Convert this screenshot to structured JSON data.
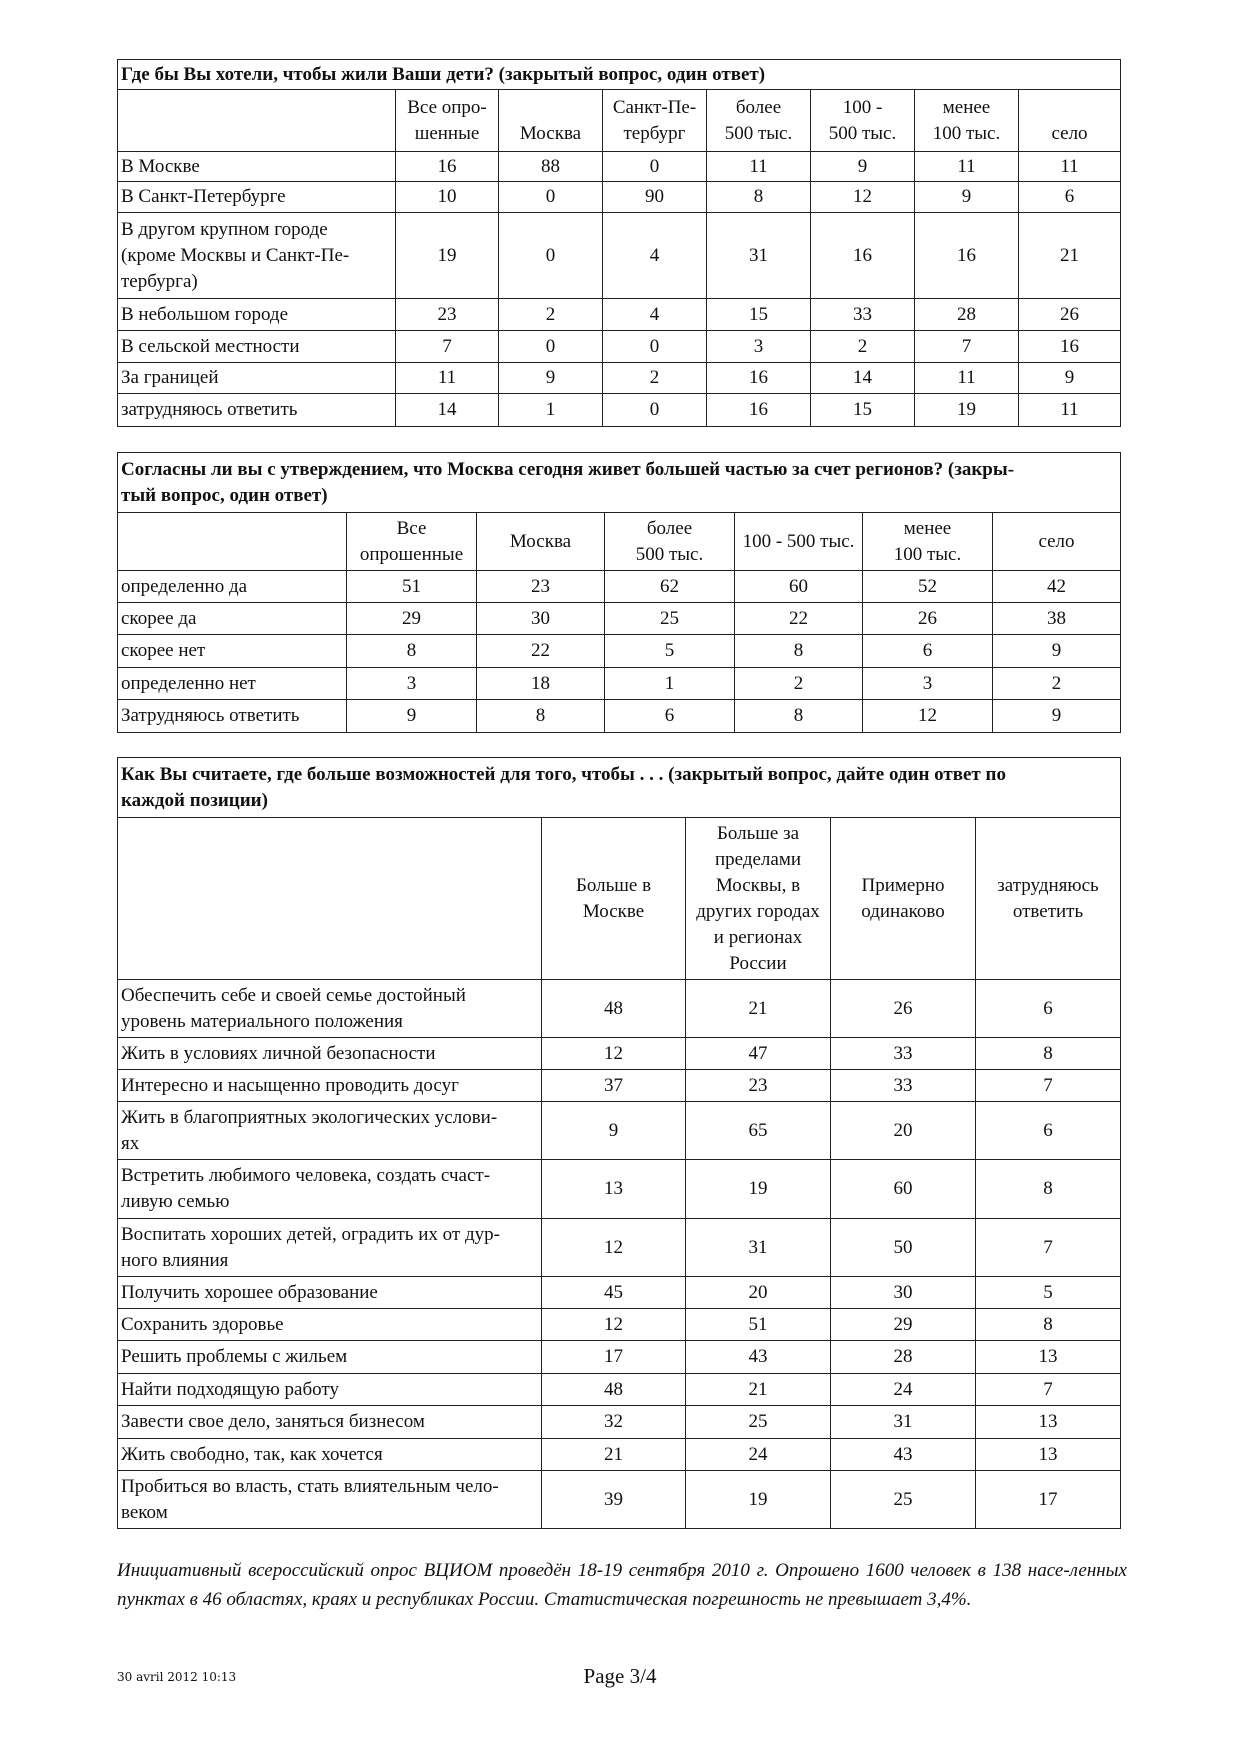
{
  "tables": [
    {
      "title": "Где бы Вы хотели, чтобы жили Ваши дети? (закрытый вопрос, один ответ)",
      "headers": [
        "",
        "Все опро-\nшенные",
        "\nМосква",
        "Санкт-Пе-\nтербург",
        "более\n500 тыс.",
        "100 -\n500 тыс.",
        "менее\n100 тыс.",
        "\nсело"
      ],
      "rows": [
        {
          "label": "В Москве",
          "values": [
            16,
            88,
            0,
            11,
            9,
            11,
            11
          ]
        },
        {
          "label": "В Санкт-Петербурге",
          "values": [
            10,
            0,
            90,
            8,
            12,
            9,
            6
          ]
        },
        {
          "label": "В другом крупном городе\n(кроме Москвы и Санкт-Пе-\nтербурга)",
          "values": [
            19,
            0,
            4,
            31,
            16,
            16,
            21
          ]
        },
        {
          "label": "В небольшом городе",
          "values": [
            23,
            2,
            4,
            15,
            33,
            28,
            26
          ]
        },
        {
          "label": "В сельской местности",
          "values": [
            7,
            0,
            0,
            3,
            2,
            7,
            16
          ]
        },
        {
          "label": "За границей",
          "values": [
            11,
            9,
            2,
            16,
            14,
            11,
            9
          ]
        },
        {
          "label": "затрудняюсь ответить",
          "values": [
            14,
            1,
            0,
            16,
            15,
            19,
            11
          ]
        }
      ]
    },
    {
      "title": "Согласны ли вы с утверждением, что Москва сегодня живет большей частью за счет регионов? (закры-\nтый вопрос, один ответ)",
      "headers": [
        "",
        "Все\nопрошенные",
        "Москва",
        "более\n500 тыс.",
        "100 - 500 тыс.",
        "менее\n100 тыс.",
        "село"
      ],
      "rows": [
        {
          "label": "определенно да",
          "values": [
            51,
            23,
            62,
            60,
            52,
            42
          ]
        },
        {
          "label": "скорее да",
          "values": [
            29,
            30,
            25,
            22,
            26,
            38
          ]
        },
        {
          "label": "скорее нет",
          "values": [
            8,
            22,
            5,
            8,
            6,
            9
          ]
        },
        {
          "label": "определенно нет",
          "values": [
            3,
            18,
            1,
            2,
            3,
            2
          ]
        },
        {
          "label": "Затрудняюсь ответить",
          "values": [
            9,
            8,
            6,
            8,
            12,
            9
          ]
        }
      ]
    },
    {
      "title": "Как Вы считаете, где больше возможностей для того, чтобы . . . (закрытый вопрос, дайте один ответ по\nкаждой позиции)",
      "headers": [
        "",
        "Больше в\nМоскве",
        "Больше за\nпределами\nМосквы, в\nдругих городах\nи регионах\nРоссии",
        "Примерно\nодинаково",
        "затрудняюсь\nответить"
      ],
      "rows": [
        {
          "label": "Обеспечить себе и своей семье достойный\nуровень материального положения",
          "values": [
            48,
            21,
            26,
            6
          ]
        },
        {
          "label": "Жить в условиях личной безопасности",
          "values": [
            12,
            47,
            33,
            8
          ]
        },
        {
          "label": "Интересно и насыщенно проводить досуг",
          "values": [
            37,
            23,
            33,
            7
          ]
        },
        {
          "label": "Жить в благоприятных экологических услови-\nях",
          "values": [
            9,
            65,
            20,
            6
          ]
        },
        {
          "label": "Встретить любимого человека, создать счаст-\nливую семью",
          "values": [
            13,
            19,
            60,
            8
          ]
        },
        {
          "label": "Воспитать хороших детей, оградить их от дур-\nного влияния",
          "values": [
            12,
            31,
            50,
            7
          ]
        },
        {
          "label": "Получить хорошее образование",
          "values": [
            45,
            20,
            30,
            5
          ]
        },
        {
          "label": "Сохранить здоровье",
          "values": [
            12,
            51,
            29,
            8
          ]
        },
        {
          "label": "Решить проблемы с жильем",
          "values": [
            17,
            43,
            28,
            13
          ]
        },
        {
          "label": "Найти подходящую работу",
          "values": [
            48,
            21,
            24,
            7
          ]
        },
        {
          "label": "Завести свое дело, заняться бизнесом",
          "values": [
            32,
            25,
            31,
            13
          ]
        },
        {
          "label": "Жить свободно, так, как хочется",
          "values": [
            21,
            24,
            43,
            13
          ]
        },
        {
          "label": "Пробиться во власть, стать влиятельным чело-\nвеком",
          "values": [
            39,
            19,
            25,
            17
          ]
        }
      ]
    }
  ],
  "note": "Инициативный всероссийский опрос ВЦИОМ проведён 18-19 сентября 2010 г. Опрошено 1600 человек в 138 насе-ленных пунктах в 46 областях, краях и республиках России. Статистическая погрешность не превышает 3,4%.",
  "footer": {
    "date": "30 avril 2012 10:13",
    "page": "Page 3/4"
  }
}
